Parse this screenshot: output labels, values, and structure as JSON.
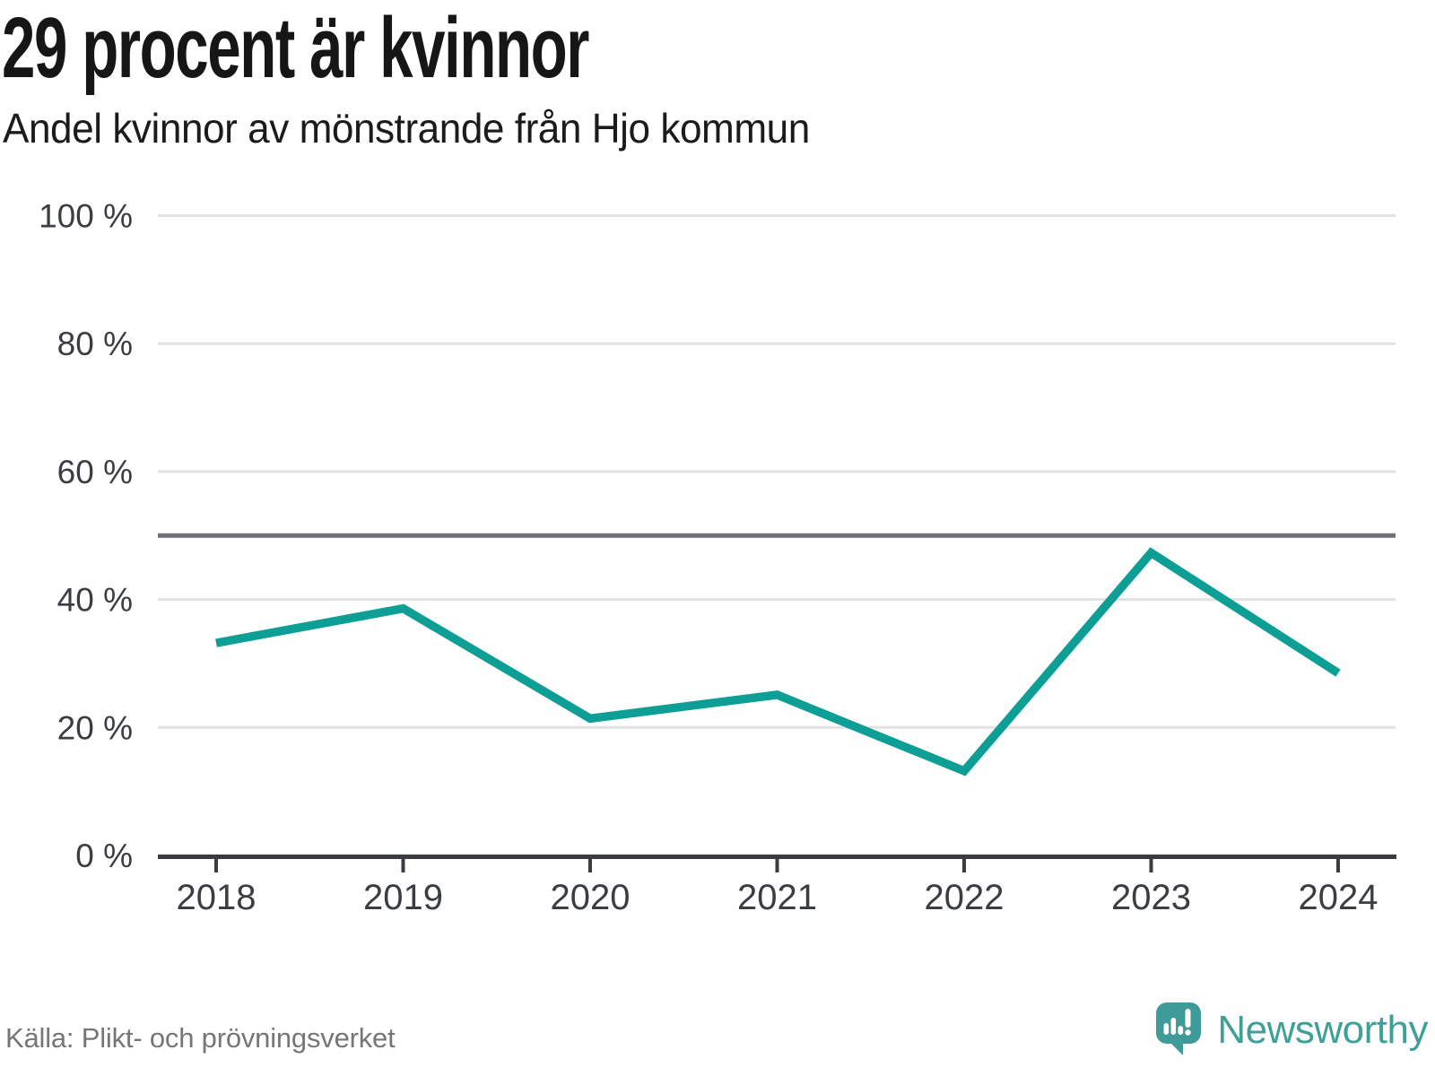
{
  "header": {
    "title": "29 procent är kvinnor",
    "subtitle": "Andel kvinnor av mönstrande från Hjo kommun"
  },
  "footer": {
    "source": "Källa: Plikt- och prövningsverket",
    "brand": "Newsworthy",
    "logo_icon": "newsworthy-speech-bubble-bar-chart-icon"
  },
  "colors": {
    "line": "#0d9e95",
    "grid": "#e2e2e2",
    "reference_line": "#6e7076",
    "axis": "#393c40",
    "tick_label": "#3a3d42",
    "title": "#161616",
    "source_text": "#767676",
    "brand_teal": "#3f9f99",
    "logo_teal": "#3e9b97"
  },
  "chart_data": {
    "type": "line",
    "title": "29 procent är kvinnor",
    "subtitle": "Andel kvinnor av mönstrande från Hjo kommun",
    "x": [
      2018,
      2019,
      2020,
      2021,
      2022,
      2023,
      2024
    ],
    "series": [
      {
        "name": "Andel kvinnor av mönstrande från Hjo kommun",
        "values": [
          33.2,
          38.6,
          21.4,
          25.1,
          13.2,
          47.3,
          28.5
        ]
      }
    ],
    "unit": "%",
    "xlabel": "",
    "ylabel": "",
    "ylim": [
      0,
      100
    ],
    "y_ticks": [
      0,
      20,
      40,
      60,
      80,
      100
    ],
    "y_tick_labels": [
      "0 %",
      "20 %",
      "40 %",
      "60 %",
      "80 %",
      "100 %"
    ],
    "reference_line": 50,
    "grid": "horizontal",
    "legend": "none",
    "line_width": 9.5
  }
}
